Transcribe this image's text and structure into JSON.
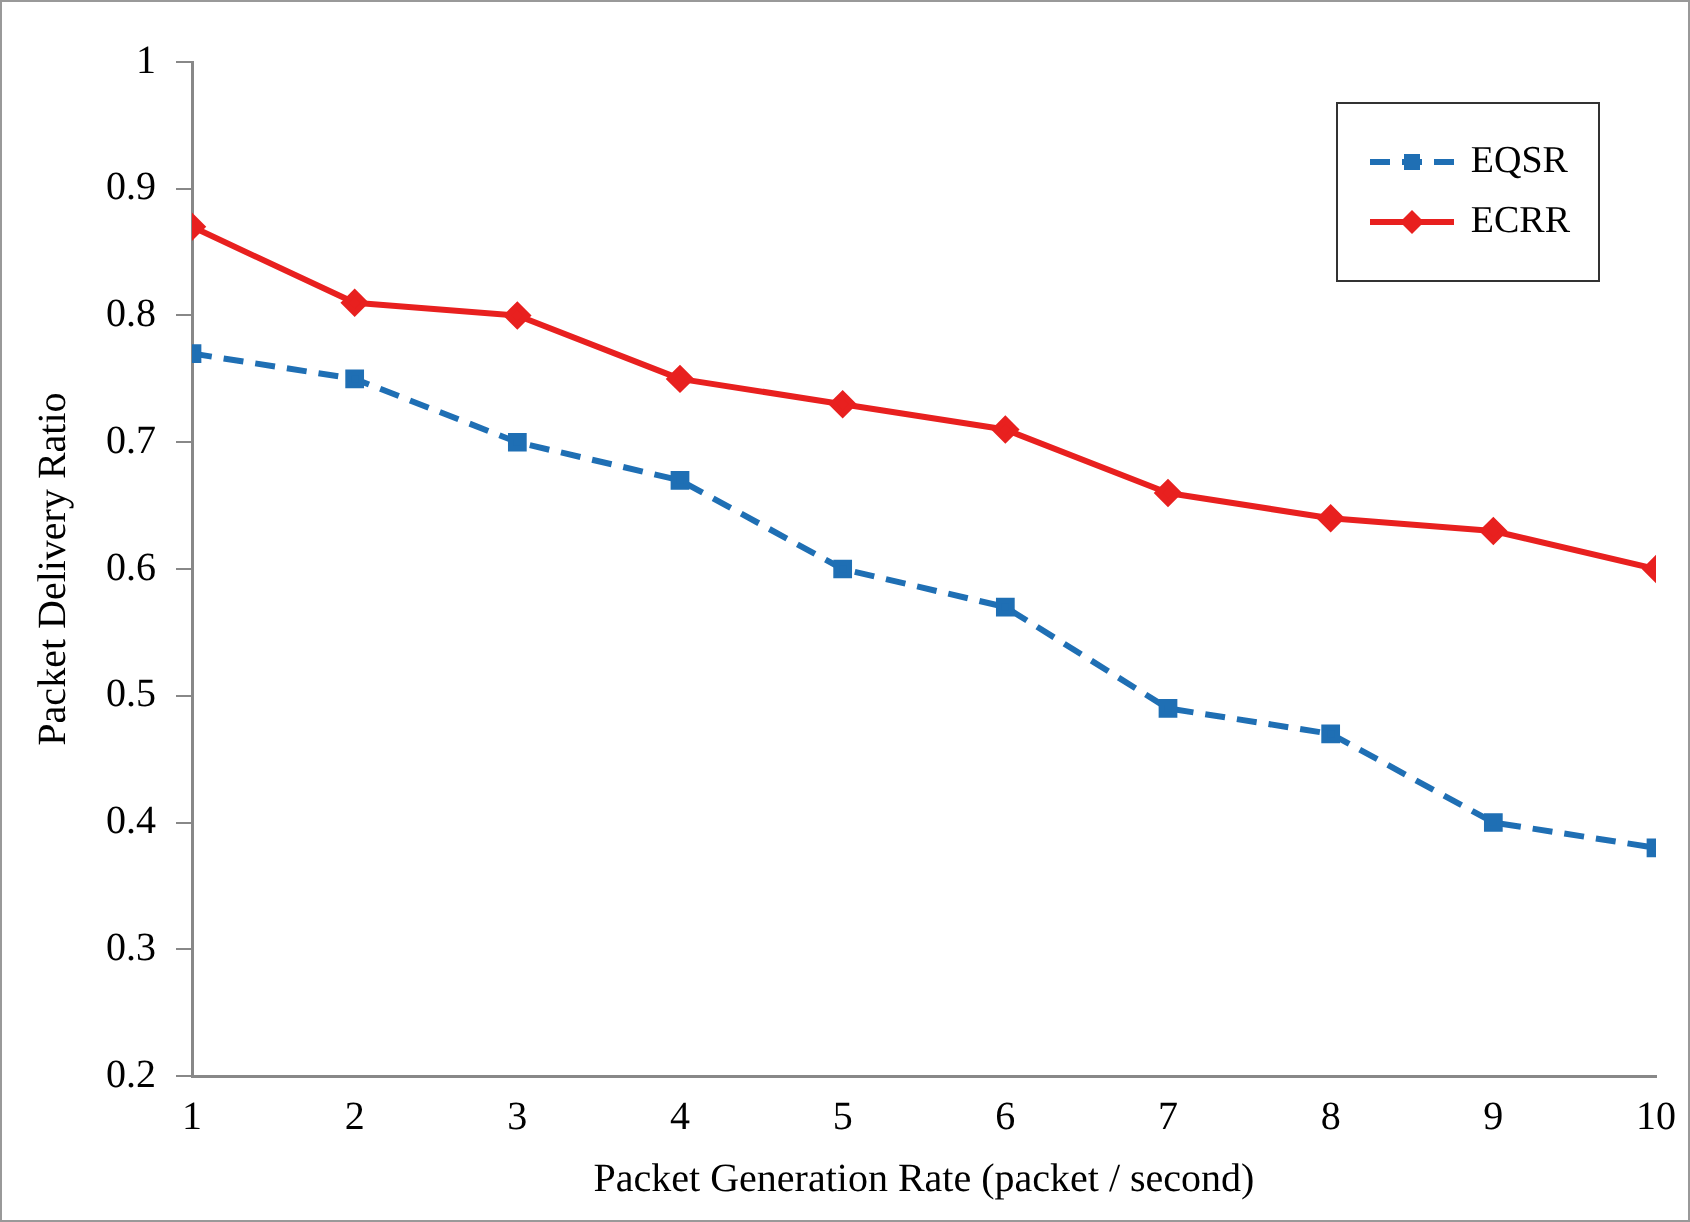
{
  "chart_data": {
    "type": "line",
    "xlabel": "Packet Generation Rate (packet / second)",
    "ylabel": "Packet Delivery Ratio",
    "x": [
      1,
      2,
      3,
      4,
      5,
      6,
      7,
      8,
      9,
      10
    ],
    "series": [
      {
        "name": "EQSR",
        "color": "#1f6fb4",
        "marker": "square",
        "line_style": "dashed",
        "values": [
          0.77,
          0.75,
          0.7,
          0.67,
          0.6,
          0.57,
          0.49,
          0.47,
          0.4,
          0.38
        ]
      },
      {
        "name": "ECRR",
        "color": "#e8201f",
        "marker": "diamond",
        "line_style": "solid",
        "values": [
          0.87,
          0.81,
          0.8,
          0.75,
          0.73,
          0.71,
          0.66,
          0.64,
          0.63,
          0.6
        ]
      }
    ],
    "xlim": [
      1,
      10
    ],
    "xticks": [
      1,
      2,
      3,
      4,
      5,
      6,
      7,
      8,
      9,
      10
    ],
    "ylim": [
      0.2,
      1
    ],
    "yticks": [
      0.2,
      0.3,
      0.4,
      0.5,
      0.6,
      0.7,
      0.8,
      0.9,
      1
    ],
    "grid": false,
    "legend": "top right"
  }
}
